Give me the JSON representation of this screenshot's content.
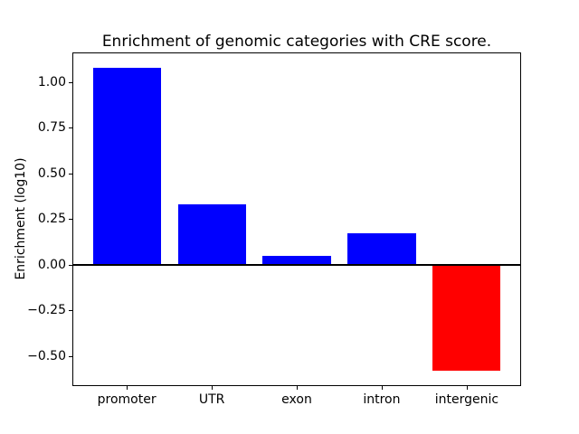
{
  "figure": {
    "title": "Enrichment of genomic categories with CRE score.",
    "ylabel": "Enrichment (log10)"
  },
  "chart_data": {
    "type": "bar",
    "title": "Enrichment of genomic categories with CRE score.",
    "xlabel": "",
    "ylabel": "Enrichment (log10)",
    "categories": [
      "promoter",
      "UTR",
      "exon",
      "intron",
      "intergenic"
    ],
    "values": [
      1.08,
      0.33,
      0.05,
      0.17,
      -0.58
    ],
    "bar_colors": [
      "#0000ff",
      "#0000ff",
      "#0000ff",
      "#0000ff",
      "#ff0000"
    ],
    "positive_color": "#0000ff",
    "negative_color": "#ff0000",
    "bar_width": 0.8,
    "xlim": [
      -0.64,
      4.64
    ],
    "ylim": [
      -0.665,
      1.162
    ],
    "yticks": [
      1.0,
      0.75,
      0.5,
      0.25,
      0.0,
      -0.25,
      -0.5
    ],
    "ytick_labels": [
      "1.00",
      "0.75",
      "0.50",
      "0.25",
      "0.00",
      "−0.25",
      "−0.50"
    ],
    "grid": false,
    "legend": null,
    "zero_line": true,
    "frame_color": "#000000",
    "background_color": "#ffffff"
  }
}
